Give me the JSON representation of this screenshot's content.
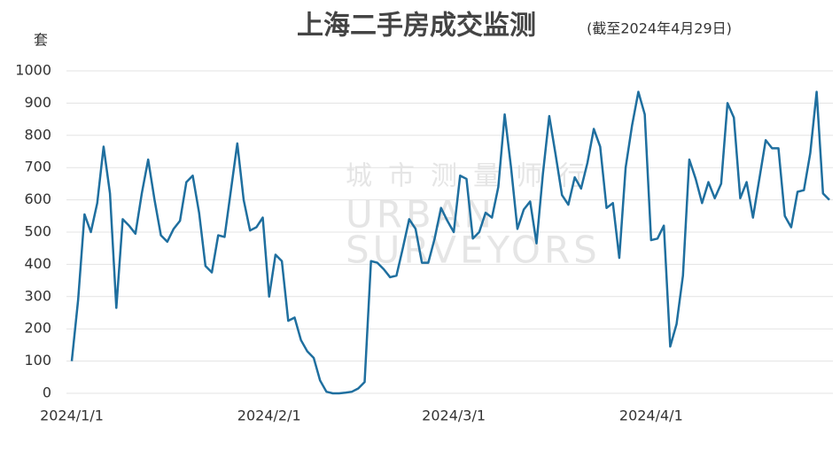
{
  "chart_data": {
    "type": "line",
    "title": "上海二手房成交监测",
    "subtitle": "(截至2024年4月29日)",
    "y_label": "套",
    "watermark": [
      "城市测量师行",
      "URBAN",
      "SURVEYORS"
    ],
    "x": [
      "2024/1/1",
      "2024/1/2",
      "2024/1/3",
      "2024/1/4",
      "2024/1/5",
      "2024/1/6",
      "2024/1/7",
      "2024/1/8",
      "2024/1/9",
      "2024/1/10",
      "2024/1/11",
      "2024/1/12",
      "2024/1/13",
      "2024/1/14",
      "2024/1/15",
      "2024/1/16",
      "2024/1/17",
      "2024/1/18",
      "2024/1/19",
      "2024/1/20",
      "2024/1/21",
      "2024/1/22",
      "2024/1/23",
      "2024/1/24",
      "2024/1/25",
      "2024/1/26",
      "2024/1/27",
      "2024/1/28",
      "2024/1/29",
      "2024/1/30",
      "2024/1/31",
      "2024/2/1",
      "2024/2/2",
      "2024/2/3",
      "2024/2/4",
      "2024/2/5",
      "2024/2/6",
      "2024/2/7",
      "2024/2/8",
      "2024/2/9",
      "2024/2/10",
      "2024/2/11",
      "2024/2/12",
      "2024/2/13",
      "2024/2/14",
      "2024/2/15",
      "2024/2/16",
      "2024/2/17",
      "2024/2/18",
      "2024/2/19",
      "2024/2/20",
      "2024/2/21",
      "2024/2/22",
      "2024/2/23",
      "2024/2/24",
      "2024/2/25",
      "2024/2/26",
      "2024/2/27",
      "2024/2/28",
      "2024/2/29",
      "2024/3/1",
      "2024/3/2",
      "2024/3/3",
      "2024/3/4",
      "2024/3/5",
      "2024/3/6",
      "2024/3/7",
      "2024/3/8",
      "2024/3/9",
      "2024/3/10",
      "2024/3/11",
      "2024/3/12",
      "2024/3/13",
      "2024/3/14",
      "2024/3/15",
      "2024/3/16",
      "2024/3/17",
      "2024/3/18",
      "2024/3/19",
      "2024/3/20",
      "2024/3/21",
      "2024/3/22",
      "2024/3/23",
      "2024/3/24",
      "2024/3/25",
      "2024/3/26",
      "2024/3/27",
      "2024/3/28",
      "2024/3/29",
      "2024/3/30",
      "2024/3/31",
      "2024/4/1",
      "2024/4/2",
      "2024/4/3",
      "2024/4/4",
      "2024/4/5",
      "2024/4/6",
      "2024/4/7",
      "2024/4/8",
      "2024/4/9",
      "2024/4/10",
      "2024/4/11",
      "2024/4/12",
      "2024/4/13",
      "2024/4/14",
      "2024/4/15",
      "2024/4/16",
      "2024/4/17",
      "2024/4/18",
      "2024/4/19",
      "2024/4/20",
      "2024/4/21",
      "2024/4/22",
      "2024/4/23",
      "2024/4/24",
      "2024/4/25",
      "2024/4/26",
      "2024/4/27",
      "2024/4/28",
      "2024/4/29"
    ],
    "series": [
      {
        "color": "#1f6f9f",
        "values": [
          100,
          290,
          555,
          500,
          590,
          765,
          620,
          265,
          540,
          520,
          495,
          620,
          725,
          600,
          490,
          470,
          510,
          535,
          655,
          675,
          560,
          395,
          375,
          490,
          485,
          630,
          775,
          600,
          505,
          515,
          545,
          300,
          430,
          410,
          225,
          235,
          165,
          130,
          110,
          40,
          5,
          0,
          0,
          2,
          5,
          15,
          35,
          410,
          405,
          385,
          360,
          365,
          450,
          540,
          510,
          405,
          405,
          480,
          575,
          535,
          500,
          675,
          665,
          480,
          500,
          560,
          545,
          640,
          865,
          700,
          510,
          570,
          595,
          465,
          680,
          860,
          740,
          615,
          585,
          670,
          635,
          715,
          820,
          765,
          575,
          590,
          420,
          700,
          830,
          935,
          865,
          475,
          480,
          520,
          145,
          215,
          365,
          725,
          665,
          590,
          655,
          605,
          650,
          900,
          855,
          605,
          655,
          545,
          665,
          785,
          760,
          760,
          550,
          515,
          625,
          630,
          745,
          935,
          620,
          600
        ]
      }
    ],
    "xticks": [
      "2024/1/1",
      "2024/2/1",
      "2024/3/1",
      "2024/4/1"
    ],
    "ylim": [
      0,
      1000
    ],
    "yticks": [
      0,
      100,
      200,
      300,
      400,
      500,
      600,
      700,
      800,
      900,
      1000
    ],
    "grid": true
  }
}
